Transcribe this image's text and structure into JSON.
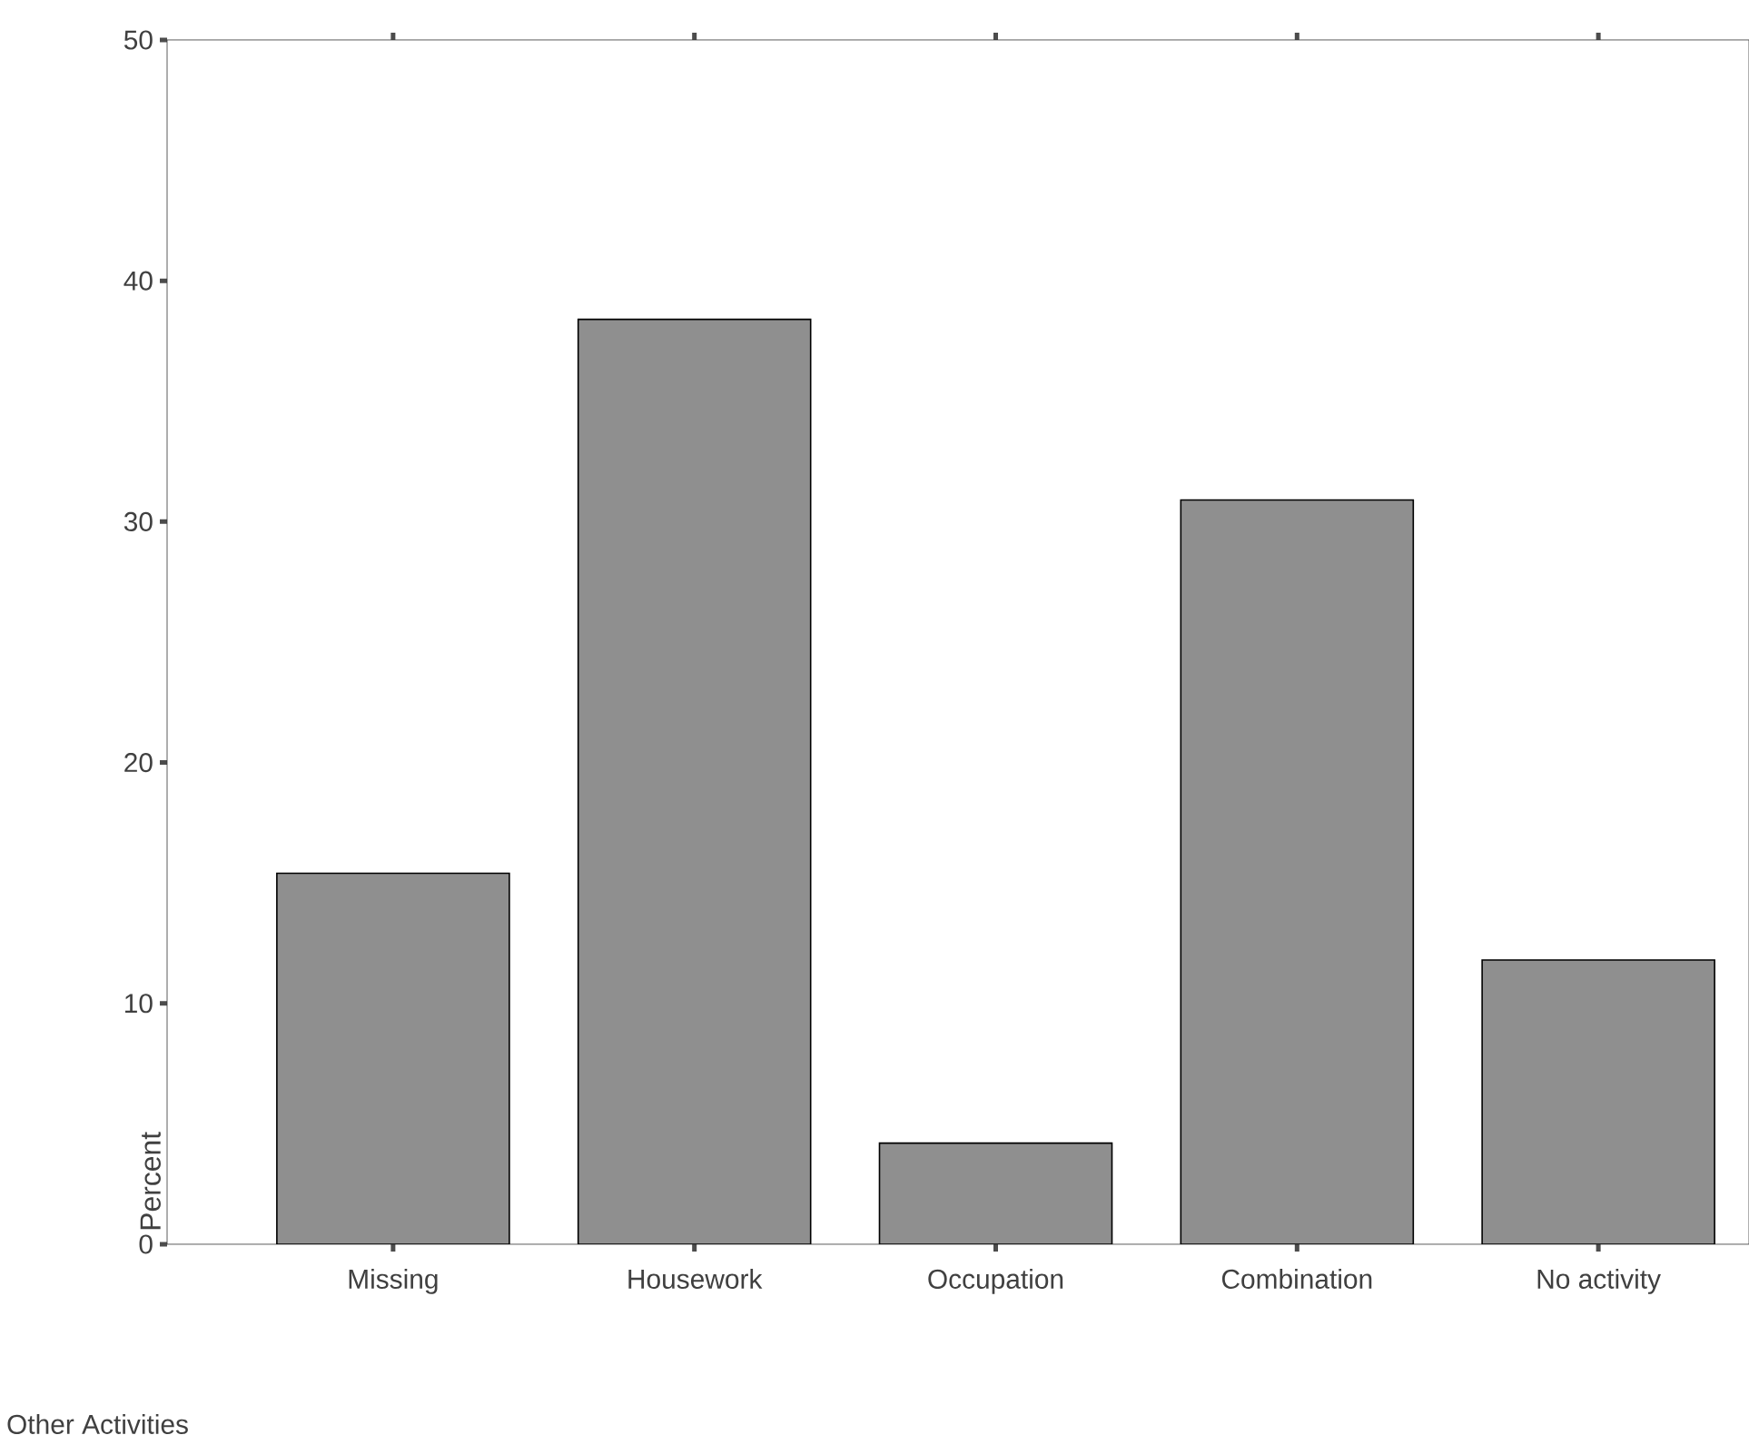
{
  "chart_data": {
    "type": "bar",
    "xlabel": "Other Activities",
    "ylabel": "Percent",
    "categories": [
      "Missing",
      "Housework",
      "Occupation",
      "Combination",
      "No activity"
    ],
    "values": [
      15.4,
      38.4,
      4.2,
      30.9,
      11.8
    ],
    "color": "#8f8f8f",
    "ylim": [
      0,
      50
    ],
    "yticks": [
      0,
      10,
      20,
      30,
      40,
      50
    ]
  }
}
